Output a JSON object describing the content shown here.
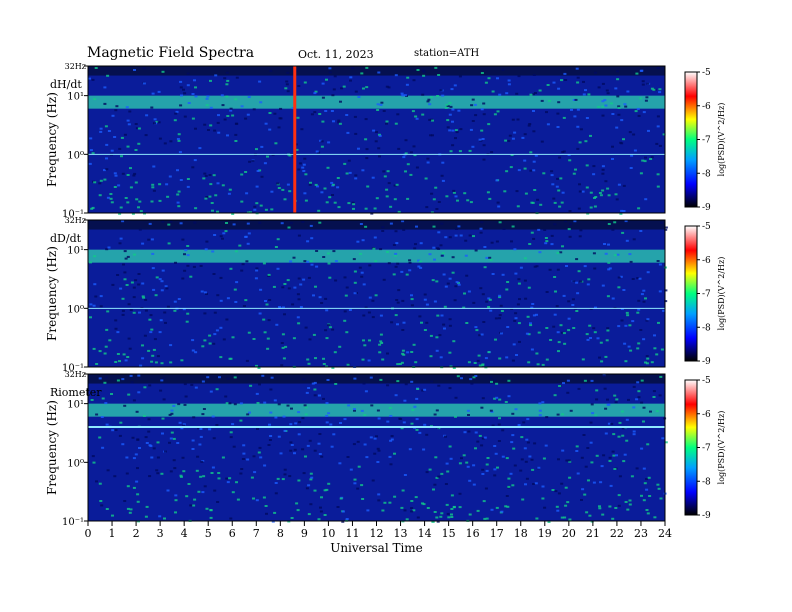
{
  "header": {
    "title": "Magnetic  Field  Spectra",
    "date": "Oct. 11, 2023",
    "station": "station=ATH"
  },
  "chart_data": {
    "type": "heatmap",
    "xlabel": "Universal Time",
    "x_ticks": [
      "0",
      "1",
      "2",
      "3",
      "4",
      "5",
      "6",
      "7",
      "8",
      "9",
      "10",
      "11",
      "12",
      "13",
      "14",
      "15",
      "16",
      "17",
      "18",
      "19",
      "20",
      "21",
      "22",
      "23",
      "24"
    ],
    "xlim": [
      0,
      24
    ],
    "panels": [
      {
        "name": "dH/dt",
        "ylabel": "Frequency  (Hz)",
        "y_ticks": [
          "32Hz",
          "10¹",
          "10⁰",
          "10⁻¹"
        ],
        "ylim": [
          0.1,
          32
        ],
        "yscale": "log",
        "colorbar": {
          "label": "log(PSD)(V^2/Hz)",
          "ticks": [
            "-5",
            "-6",
            "-7",
            "-8",
            "-9"
          ],
          "range": [
            -9,
            -5
          ]
        }
      },
      {
        "name": "dD/dt",
        "ylabel": "Frequency  (Hz)",
        "y_ticks": [
          "32Hz",
          "10¹",
          "10⁰",
          "10⁻¹"
        ],
        "ylim": [
          0.1,
          32
        ],
        "yscale": "log",
        "colorbar": {
          "label": "log(PSD)(V^2/Hz)",
          "ticks": [
            "-5",
            "-6",
            "-7",
            "-8",
            "-9"
          ],
          "range": [
            -9,
            -5
          ]
        }
      },
      {
        "name": "Riometer",
        "ylabel": "Frequency  (Hz)",
        "y_ticks": [
          "32Hz",
          "10¹",
          "10⁰",
          "10⁻¹"
        ],
        "ylim": [
          0.1,
          32
        ],
        "yscale": "log",
        "colorbar": {
          "label": "log(PSD)(V^2/Hz)",
          "ticks": [
            "-5",
            "-6",
            "-7",
            "-8",
            "-9"
          ],
          "range": [
            -9,
            -5
          ]
        }
      }
    ],
    "colors": {
      "background": "#0a1c9a",
      "band": "#2fd0b0",
      "colormap": [
        "#000000",
        "#0000ff",
        "#00a0ff",
        "#00ff80",
        "#ffff00",
        "#ff0000",
        "#ffffff"
      ]
    }
  }
}
